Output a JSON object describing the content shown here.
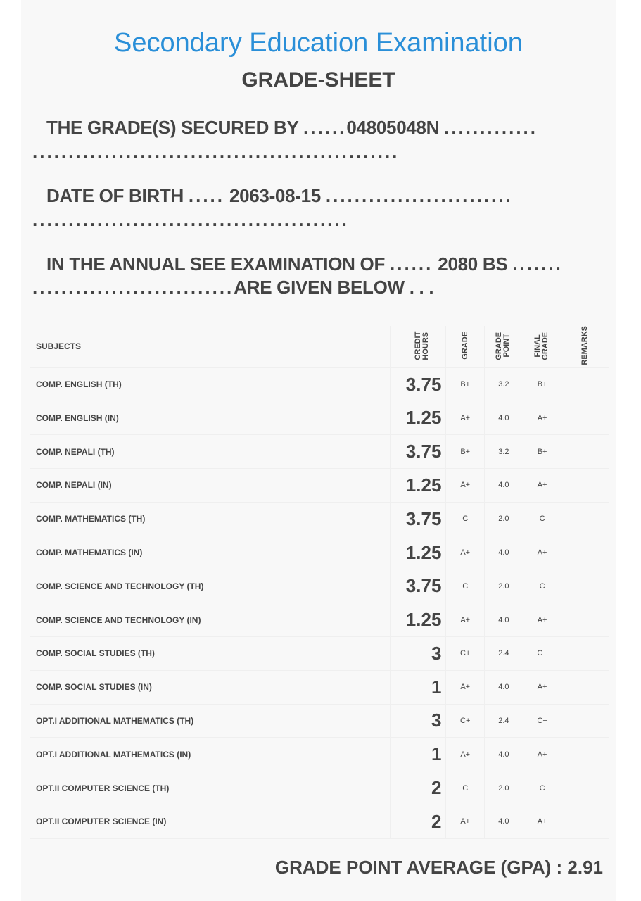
{
  "header": {
    "title": "Secondary Education Examination",
    "subtitle": "GRADE-SHEET"
  },
  "info": {
    "secured_label": "THE GRADE(S) SECURED BY",
    "secured_value": "04805048N",
    "dob_label": "DATE OF BIRTH",
    "dob_value": "2063-08-15",
    "exam_label": "IN THE ANNUAL SEE EXAMINATION OF",
    "exam_value": "2080 BS",
    "given_below": "ARE GIVEN BELOW . . .",
    "dots_short": "......",
    "dots_mid": ".....",
    "dots_l1": ".............",
    "dots_l1b": "...................................................",
    "dots_l2": "..........................",
    "dots_l2b": "............................................",
    "dots_l3": ".......",
    "dots_l3b": "............................"
  },
  "table": {
    "headers": {
      "subjects": "SUBJECTS",
      "credit": "CREDIT HOURS",
      "grade": "GRADE",
      "point": "GRADE POINT",
      "final": "FINAL GRADE",
      "remarks": "REMARKS"
    },
    "rows": [
      {
        "subject": "COMP. ENGLISH (TH)",
        "credit": "3.75",
        "grade": "B+",
        "point": "3.2",
        "final": "B+"
      },
      {
        "subject": "COMP. ENGLISH (IN)",
        "credit": "1.25",
        "grade": "A+",
        "point": "4.0",
        "final": "A+"
      },
      {
        "subject": "COMP. NEPALI (TH)",
        "credit": "3.75",
        "grade": "B+",
        "point": "3.2",
        "final": "B+"
      },
      {
        "subject": "COMP. NEPALI (IN)",
        "credit": "1.25",
        "grade": "A+",
        "point": "4.0",
        "final": "A+"
      },
      {
        "subject": "COMP. MATHEMATICS (TH)",
        "credit": "3.75",
        "grade": "C",
        "point": "2.0",
        "final": "C"
      },
      {
        "subject": "COMP. MATHEMATICS (IN)",
        "credit": "1.25",
        "grade": "A+",
        "point": "4.0",
        "final": "A+"
      },
      {
        "subject": "COMP. SCIENCE AND TECHNOLOGY (TH)",
        "credit": "3.75",
        "grade": "C",
        "point": "2.0",
        "final": "C"
      },
      {
        "subject": "COMP. SCIENCE AND TECHNOLOGY (IN)",
        "credit": "1.25",
        "grade": "A+",
        "point": "4.0",
        "final": "A+"
      },
      {
        "subject": "COMP. SOCIAL STUDIES (TH)",
        "credit": "3",
        "grade": "C+",
        "point": "2.4",
        "final": "C+"
      },
      {
        "subject": "COMP. SOCIAL STUDIES (IN)",
        "credit": "1",
        "grade": "A+",
        "point": "4.0",
        "final": "A+"
      },
      {
        "subject": "OPT.I ADDITIONAL MATHEMATICS (TH)",
        "credit": "3",
        "grade": "C+",
        "point": "2.4",
        "final": "C+"
      },
      {
        "subject": "OPT.I ADDITIONAL MATHEMATICS (IN)",
        "credit": "1",
        "grade": "A+",
        "point": "4.0",
        "final": "A+"
      },
      {
        "subject": "OPT.II COMPUTER SCIENCE (TH)",
        "credit": "2",
        "grade": "C",
        "point": "2.0",
        "final": "C"
      },
      {
        "subject": "OPT.II COMPUTER SCIENCE (IN)",
        "credit": "2",
        "grade": "A+",
        "point": "4.0",
        "final": "A+"
      }
    ]
  },
  "gpa": "GRADE POINT AVERAGE (GPA) : 2.91"
}
